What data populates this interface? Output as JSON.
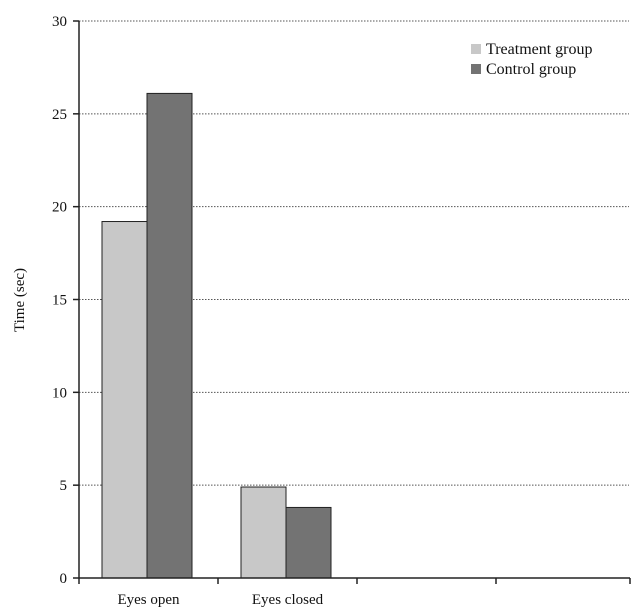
{
  "chart_data": {
    "type": "bar",
    "categories": [
      "Eyes open",
      "Eyes closed",
      "",
      ""
    ],
    "series": [
      {
        "name": "Treatment group",
        "color": "#c8c8c8",
        "values": [
          19.2,
          4.9,
          null,
          null
        ]
      },
      {
        "name": "Control group",
        "color": "#737373",
        "values": [
          26.1,
          3.8,
          null,
          null
        ]
      }
    ],
    "title": "",
    "xlabel": "",
    "ylabel": "Time (sec)",
    "ylim": [
      0,
      30
    ],
    "yticks": [
      0,
      5,
      10,
      15,
      20,
      25,
      30
    ],
    "grid": "horizontal dotted",
    "legend_position": "top-right"
  }
}
